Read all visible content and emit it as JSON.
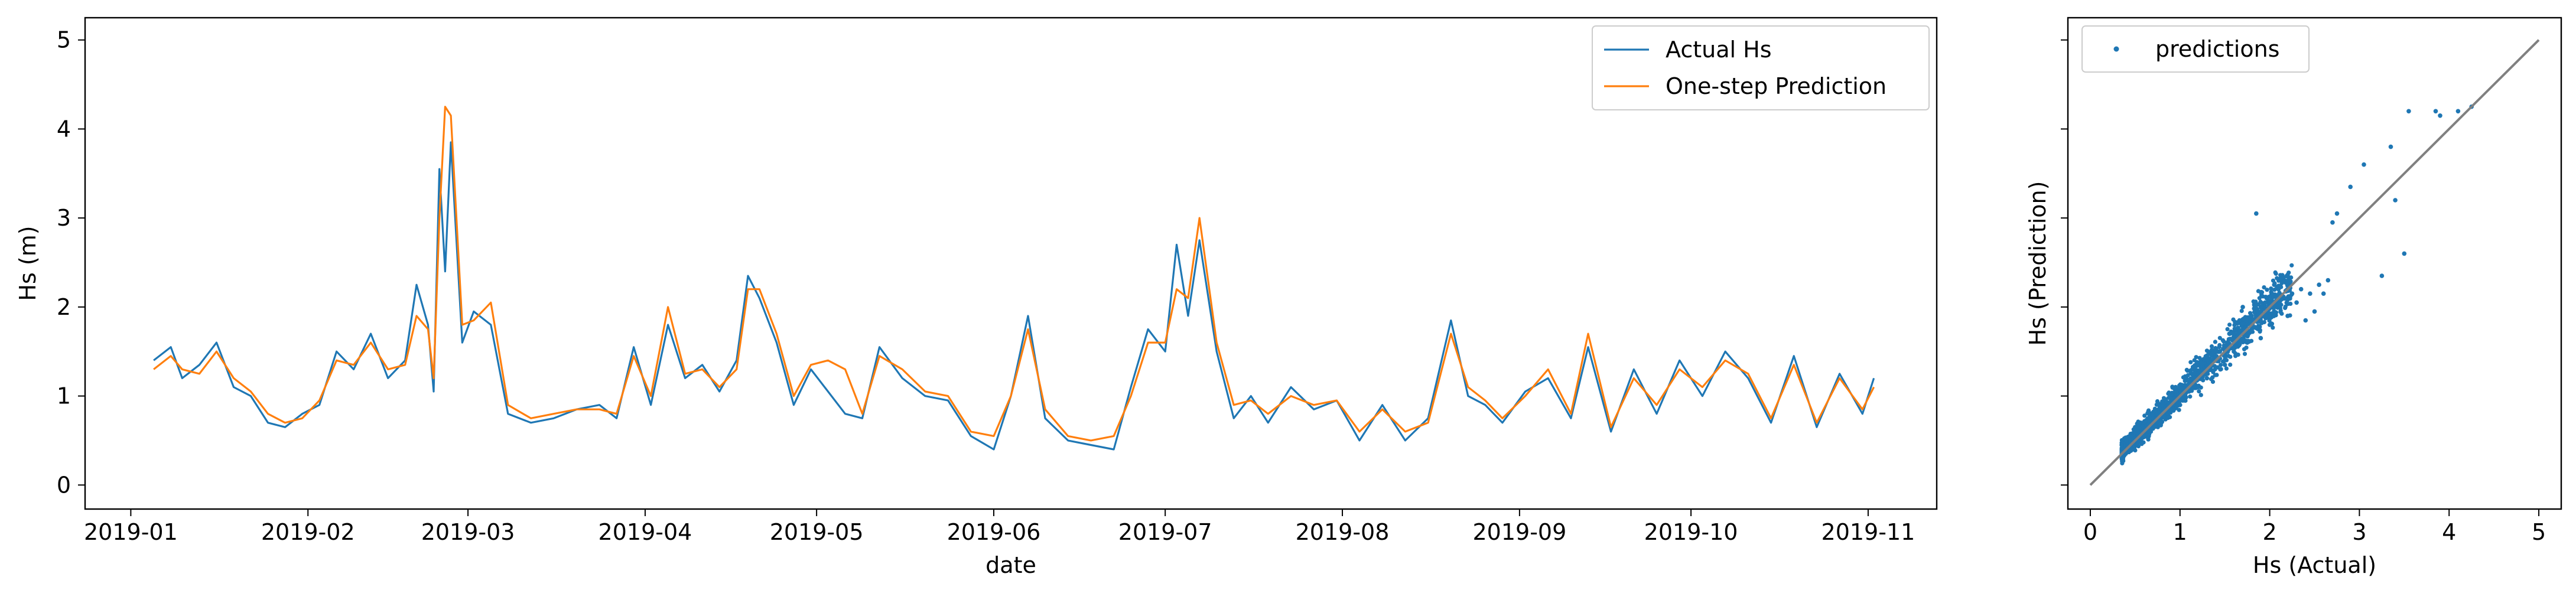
{
  "chart_data": [
    {
      "type": "line",
      "xlabel": "date",
      "ylabel": "Hs (m)",
      "x_range": [
        "2018-12-24",
        "2019-11-13"
      ],
      "ylim": [
        -0.27,
        5.25
      ],
      "x_ticks": [
        "2019-01",
        "2019-02",
        "2019-03",
        "2019-04",
        "2019-05",
        "2019-06",
        "2019-07",
        "2019-08",
        "2019-09",
        "2019-10",
        "2019-11"
      ],
      "y_ticks": [
        "0",
        "1",
        "2",
        "3",
        "4",
        "5"
      ],
      "grid": false,
      "legend_position": "top-right",
      "series": [
        {
          "name": "Actual Hs",
          "color": "#1f77b4",
          "x": [
            "2019-01-05",
            "2019-01-08",
            "2019-01-10",
            "2019-01-13",
            "2019-01-16",
            "2019-01-19",
            "2019-01-22",
            "2019-01-25",
            "2019-01-28",
            "2019-01-31",
            "2019-02-03",
            "2019-02-06",
            "2019-02-09",
            "2019-02-12",
            "2019-02-15",
            "2019-02-18",
            "2019-02-20",
            "2019-02-22",
            "2019-02-23",
            "2019-02-24",
            "2019-02-25",
            "2019-02-26",
            "2019-02-28",
            "2019-03-02",
            "2019-03-05",
            "2019-03-08",
            "2019-03-12",
            "2019-03-16",
            "2019-03-20",
            "2019-03-24",
            "2019-03-27",
            "2019-03-30",
            "2019-04-02",
            "2019-04-05",
            "2019-04-08",
            "2019-04-11",
            "2019-04-14",
            "2019-04-17",
            "2019-04-19",
            "2019-04-21",
            "2019-04-24",
            "2019-04-27",
            "2019-04-30",
            "2019-05-03",
            "2019-05-06",
            "2019-05-09",
            "2019-05-12",
            "2019-05-16",
            "2019-05-20",
            "2019-05-24",
            "2019-05-28",
            "2019-06-01",
            "2019-06-04",
            "2019-06-07",
            "2019-06-10",
            "2019-06-14",
            "2019-06-18",
            "2019-06-22",
            "2019-06-25",
            "2019-06-28",
            "2019-07-01",
            "2019-07-03",
            "2019-07-05",
            "2019-07-07",
            "2019-07-10",
            "2019-07-13",
            "2019-07-16",
            "2019-07-19",
            "2019-07-23",
            "2019-07-27",
            "2019-07-31",
            "2019-08-04",
            "2019-08-08",
            "2019-08-12",
            "2019-08-16",
            "2019-08-20",
            "2019-08-23",
            "2019-08-26",
            "2019-08-29",
            "2019-09-02",
            "2019-09-06",
            "2019-09-10",
            "2019-09-13",
            "2019-09-17",
            "2019-09-21",
            "2019-09-25",
            "2019-09-29",
            "2019-10-03",
            "2019-10-07",
            "2019-10-11",
            "2019-10-15",
            "2019-10-19",
            "2019-10-23",
            "2019-10-27",
            "2019-10-31",
            "2019-11-02"
          ],
          "y": [
            1.4,
            1.55,
            1.2,
            1.35,
            1.6,
            1.1,
            1.0,
            0.7,
            0.65,
            0.8,
            0.9,
            1.5,
            1.3,
            1.7,
            1.2,
            1.4,
            2.25,
            1.8,
            1.05,
            3.55,
            2.4,
            3.85,
            1.6,
            1.95,
            1.8,
            0.8,
            0.7,
            0.75,
            0.85,
            0.9,
            0.75,
            1.55,
            0.9,
            1.8,
            1.2,
            1.35,
            1.05,
            1.4,
            2.35,
            2.1,
            1.6,
            0.9,
            1.3,
            1.05,
            0.8,
            0.75,
            1.55,
            1.2,
            1.0,
            0.95,
            0.55,
            0.4,
            1.0,
            1.9,
            0.75,
            0.5,
            0.45,
            0.4,
            1.1,
            1.75,
            1.5,
            2.7,
            1.9,
            2.75,
            1.5,
            0.75,
            1.0,
            0.7,
            1.1,
            0.85,
            0.95,
            0.5,
            0.9,
            0.5,
            0.75,
            1.85,
            1.0,
            0.9,
            0.7,
            1.05,
            1.2,
            0.75,
            1.55,
            0.6,
            1.3,
            0.8,
            1.4,
            1.0,
            1.5,
            1.2,
            0.7,
            1.45,
            0.65,
            1.25,
            0.8,
            1.2
          ]
        },
        {
          "name": "One-step Prediction",
          "color": "#ff7f0e",
          "x": [
            "2019-01-05",
            "2019-01-08",
            "2019-01-10",
            "2019-01-13",
            "2019-01-16",
            "2019-01-19",
            "2019-01-22",
            "2019-01-25",
            "2019-01-28",
            "2019-01-31",
            "2019-02-03",
            "2019-02-06",
            "2019-02-09",
            "2019-02-12",
            "2019-02-15",
            "2019-02-18",
            "2019-02-20",
            "2019-02-22",
            "2019-02-23",
            "2019-02-24",
            "2019-02-25",
            "2019-02-26",
            "2019-02-28",
            "2019-03-02",
            "2019-03-05",
            "2019-03-08",
            "2019-03-12",
            "2019-03-16",
            "2019-03-20",
            "2019-03-24",
            "2019-03-27",
            "2019-03-30",
            "2019-04-02",
            "2019-04-05",
            "2019-04-08",
            "2019-04-11",
            "2019-04-14",
            "2019-04-17",
            "2019-04-19",
            "2019-04-21",
            "2019-04-24",
            "2019-04-27",
            "2019-04-30",
            "2019-05-03",
            "2019-05-06",
            "2019-05-09",
            "2019-05-12",
            "2019-05-16",
            "2019-05-20",
            "2019-05-24",
            "2019-05-28",
            "2019-06-01",
            "2019-06-04",
            "2019-06-07",
            "2019-06-10",
            "2019-06-14",
            "2019-06-18",
            "2019-06-22",
            "2019-06-25",
            "2019-06-28",
            "2019-07-01",
            "2019-07-03",
            "2019-07-05",
            "2019-07-07",
            "2019-07-10",
            "2019-07-13",
            "2019-07-16",
            "2019-07-19",
            "2019-07-23",
            "2019-07-27",
            "2019-07-31",
            "2019-08-04",
            "2019-08-08",
            "2019-08-12",
            "2019-08-16",
            "2019-08-20",
            "2019-08-23",
            "2019-08-26",
            "2019-08-29",
            "2019-09-02",
            "2019-09-06",
            "2019-09-10",
            "2019-09-13",
            "2019-09-17",
            "2019-09-21",
            "2019-09-25",
            "2019-09-29",
            "2019-10-03",
            "2019-10-07",
            "2019-10-11",
            "2019-10-15",
            "2019-10-19",
            "2019-10-23",
            "2019-10-27",
            "2019-10-31",
            "2019-11-02"
          ],
          "y": [
            1.3,
            1.45,
            1.3,
            1.25,
            1.5,
            1.2,
            1.05,
            0.8,
            0.7,
            0.75,
            0.95,
            1.4,
            1.35,
            1.6,
            1.3,
            1.35,
            1.9,
            1.75,
            1.2,
            3.0,
            4.25,
            4.15,
            1.8,
            1.85,
            2.05,
            0.9,
            0.75,
            0.8,
            0.85,
            0.85,
            0.8,
            1.45,
            1.0,
            2.0,
            1.25,
            1.3,
            1.1,
            1.3,
            2.2,
            2.2,
            1.7,
            1.0,
            1.35,
            1.4,
            1.3,
            0.8,
            1.45,
            1.3,
            1.05,
            1.0,
            0.6,
            0.55,
            1.0,
            1.75,
            0.85,
            0.55,
            0.5,
            0.55,
            1.0,
            1.6,
            1.6,
            2.2,
            2.1,
            3.0,
            1.6,
            0.9,
            0.95,
            0.8,
            1.0,
            0.9,
            0.95,
            0.6,
            0.85,
            0.6,
            0.7,
            1.7,
            1.1,
            0.95,
            0.75,
            1.0,
            1.3,
            0.8,
            1.7,
            0.65,
            1.2,
            0.9,
            1.3,
            1.1,
            1.4,
            1.25,
            0.75,
            1.35,
            0.7,
            1.2,
            0.85,
            1.1
          ]
        }
      ]
    },
    {
      "type": "scatter",
      "xlabel": "Hs (Actual)",
      "ylabel": "Hs (Prediction)",
      "xlim": [
        -0.25,
        5.25
      ],
      "ylim": [
        -0.27,
        5.25
      ],
      "x_ticks": [
        "0",
        "1",
        "2",
        "3",
        "4",
        "5"
      ],
      "grid": false,
      "legend_position": "top-left",
      "identity_line": {
        "from": [
          0,
          0
        ],
        "to": [
          5,
          5
        ],
        "color": "#808080"
      },
      "series": [
        {
          "name": "predictions",
          "color": "#1f77b4",
          "points": [
            [
              3.55,
              4.2
            ],
            [
              3.85,
              4.2
            ],
            [
              4.25,
              4.25
            ],
            [
              4.1,
              4.2
            ],
            [
              3.9,
              4.15
            ],
            [
              2.75,
              3.05
            ],
            [
              2.7,
              2.95
            ],
            [
              3.35,
              3.8
            ],
            [
              2.9,
              3.35
            ],
            [
              3.05,
              3.6
            ],
            [
              3.4,
              3.2
            ],
            [
              3.5,
              2.6
            ],
            [
              3.25,
              2.35
            ],
            [
              1.85,
              3.05
            ],
            [
              2.25,
              2.15
            ],
            [
              2.35,
              2.2
            ],
            [
              2.1,
              2.0
            ],
            [
              1.95,
              2.05
            ],
            [
              2.2,
              1.9
            ],
            [
              1.8,
              1.75
            ],
            [
              2.4,
              1.85
            ],
            [
              2.05,
              2.25
            ],
            [
              2.6,
              2.15
            ],
            [
              2.5,
              1.95
            ],
            [
              2.0,
              1.8
            ],
            [
              1.9,
              1.65
            ],
            [
              1.7,
              2.0
            ],
            [
              1.6,
              1.5
            ],
            [
              1.75,
              1.6
            ],
            [
              1.5,
              1.35
            ],
            [
              1.55,
              1.7
            ],
            [
              1.4,
              1.5
            ],
            [
              1.2,
              1.1
            ],
            [
              1.0,
              0.9
            ],
            [
              0.75,
              0.8
            ],
            [
              0.6,
              0.55
            ],
            [
              0.4,
              0.5
            ],
            [
              0.35,
              0.45
            ],
            [
              0.5,
              0.65
            ],
            [
              0.9,
              0.85
            ],
            [
              1.3,
              1.2
            ],
            [
              1.45,
              1.3
            ],
            [
              1.1,
              1.05
            ],
            [
              0.8,
              0.9
            ],
            [
              0.7,
              0.75
            ],
            [
              1.6,
              1.7
            ],
            [
              1.8,
              1.9
            ],
            [
              2.0,
              2.05
            ],
            [
              1.25,
              1.35
            ],
            [
              0.95,
              1.1
            ],
            [
              0.55,
              0.7
            ],
            [
              0.65,
              0.6
            ],
            [
              1.05,
              0.95
            ],
            [
              1.15,
              1.25
            ],
            [
              1.35,
              1.4
            ],
            [
              1.5,
              1.55
            ],
            [
              2.3,
              2.05
            ],
            [
              2.55,
              2.25
            ],
            [
              2.65,
              2.3
            ],
            [
              2.45,
              2.15
            ]
          ]
        }
      ]
    }
  ]
}
